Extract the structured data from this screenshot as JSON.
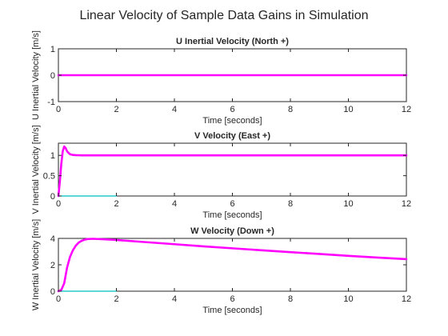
{
  "figure": {
    "title": "Linear Velocity of Sample Data Gains in Simulation"
  },
  "colors": {
    "primary": "#ff00ff",
    "secondary": "#00bfbf",
    "axis": "#262626",
    "background": "#ffffff"
  },
  "chart_data": [
    {
      "type": "line",
      "title": "U Inertial Velocity (North +)",
      "xlabel": "Time [seconds]",
      "ylabel": "U Inertial Velocity [m/s]",
      "xlim": [
        0,
        12
      ],
      "ylim": [
        -1,
        1
      ],
      "xticks": [
        0,
        2,
        4,
        6,
        8,
        10,
        12
      ],
      "yticks": [
        -1,
        0,
        1
      ],
      "grid": false,
      "series": [
        {
          "color": "#00bfbf",
          "width": 1.2,
          "x": [
            0,
            2
          ],
          "y": [
            0,
            0
          ]
        },
        {
          "color": "#ff00ff",
          "width": 2.6,
          "x": [
            0,
            12
          ],
          "y": [
            0,
            0
          ]
        }
      ]
    },
    {
      "type": "line",
      "title": "V Velocity (East +)",
      "xlabel": "Time [seconds]",
      "ylabel": "V Inertial Velocity [m/s]",
      "xlim": [
        0,
        12
      ],
      "ylim": [
        0,
        1.3
      ],
      "xticks": [
        0,
        2,
        4,
        6,
        8,
        10,
        12
      ],
      "yticks": [
        0,
        0.5,
        1
      ],
      "grid": false,
      "series": [
        {
          "color": "#00bfbf",
          "width": 1.2,
          "x": [
            0,
            2
          ],
          "y": [
            0,
            0
          ]
        },
        {
          "color": "#ff00ff",
          "width": 2.6,
          "x": [
            0,
            0.05,
            0.1,
            0.15,
            0.2,
            0.25,
            0.3,
            0.35,
            0.4,
            0.5,
            0.6,
            0.8,
            1.0,
            1.5,
            2,
            4,
            6,
            8,
            10,
            12
          ],
          "y": [
            0,
            0.35,
            0.8,
            1.1,
            1.22,
            1.18,
            1.1,
            1.06,
            1.03,
            1.01,
            1.005,
            1.0,
            1.0,
            1.0,
            1.0,
            1.0,
            1.0,
            1.0,
            1.0,
            1.0
          ]
        }
      ]
    },
    {
      "type": "line",
      "title": "W Velocity (Down +)",
      "xlabel": "Time [seconds]",
      "ylabel": "W Inertial Velocity [m/s]",
      "xlim": [
        0,
        12
      ],
      "ylim": [
        0,
        4
      ],
      "xticks": [
        0,
        2,
        4,
        6,
        8,
        10,
        12
      ],
      "yticks": [
        0,
        2,
        4
      ],
      "grid": false,
      "series": [
        {
          "color": "#00bfbf",
          "width": 1.2,
          "x": [
            0,
            2
          ],
          "y": [
            0,
            0
          ]
        },
        {
          "color": "#ff00ff",
          "width": 2.6,
          "x": [
            0,
            0.1,
            0.2,
            0.25,
            0.3,
            0.4,
            0.5,
            0.6,
            0.7,
            0.8,
            0.9,
            1.0,
            1.2,
            1.5,
            2,
            3,
            4,
            5,
            6,
            7,
            8,
            9,
            10,
            11,
            12
          ],
          "y": [
            0,
            0.1,
            0.6,
            1.2,
            1.8,
            2.6,
            3.1,
            3.45,
            3.68,
            3.82,
            3.9,
            3.95,
            3.97,
            3.94,
            3.88,
            3.72,
            3.56,
            3.4,
            3.25,
            3.1,
            2.96,
            2.82,
            2.68,
            2.55,
            2.43
          ]
        }
      ]
    }
  ]
}
